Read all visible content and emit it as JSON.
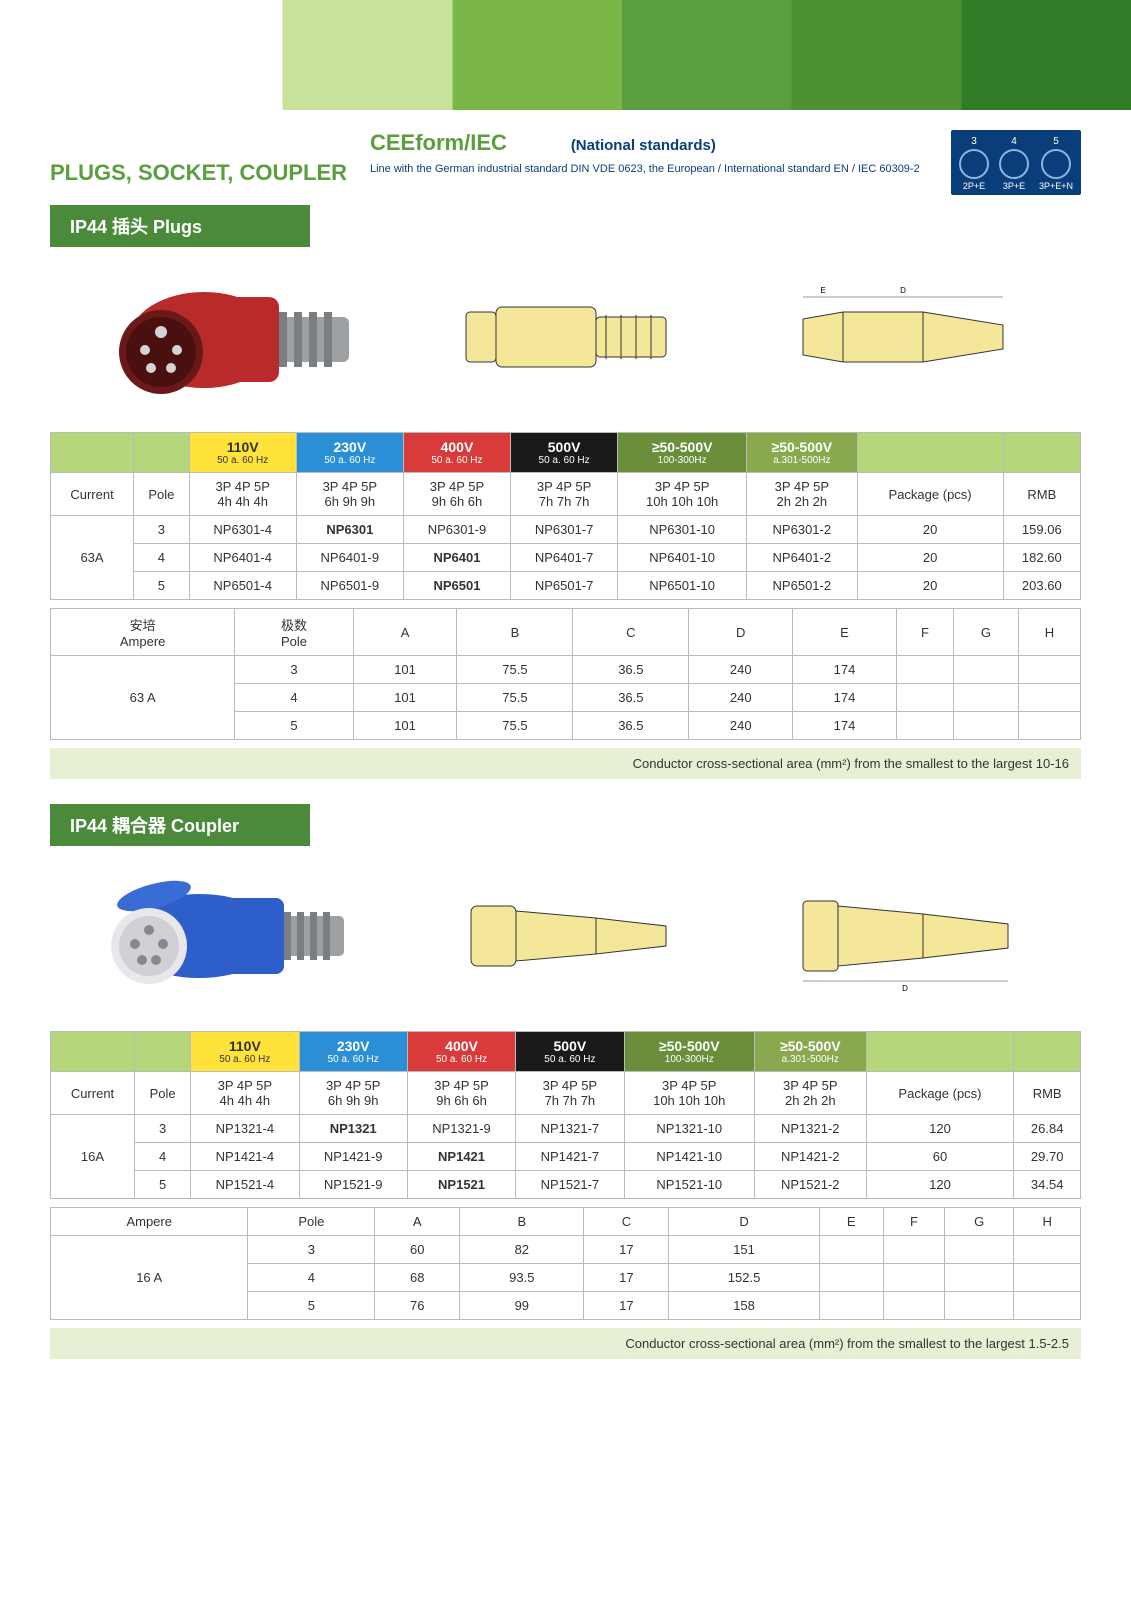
{
  "header": {
    "main_title": "PLUGS, SOCKET, COUPLER",
    "ceeform": "CEEform/IEC",
    "national": "(National standards)",
    "subline": "Line with the German industrial standard DIN VDE 0623, the European / International standard EN / IEC 60309-2",
    "pins": [
      {
        "num": "3",
        "label": "2P+E"
      },
      {
        "num": "4",
        "label": "3P+E"
      },
      {
        "num": "5",
        "label": "3P+E+N"
      }
    ]
  },
  "colors": {
    "green_main": "#5a9e3e",
    "green_dark": "#4a8a3a",
    "navy": "#0a3e7a",
    "hdr_green": "#b5d67a",
    "hdr_yellow": "#ffe23a",
    "hdr_blue": "#2a8fd4",
    "hdr_red": "#d93a3a",
    "hdr_black": "#1a1a1a",
    "hdr_olive": "#6b8e3a",
    "hdr_olive2": "#8aa84d",
    "plug_red": "#b92a2a",
    "plug_grey": "#9ca0a3",
    "coupler_blue": "#2d5ec9",
    "tech_fill": "#f5e79a",
    "tech_stroke": "#333"
  },
  "sections": {
    "plugs": {
      "label": "IP44   插头 Plugs"
    },
    "coupler": {
      "label": "IP44   耦合器 Coupler"
    }
  },
  "voltage_headers": [
    {
      "volt": "110V",
      "hz": "50 a. 60 Hz",
      "cls": "hdr-yellow"
    },
    {
      "volt": "230V",
      "hz": "50 a. 60 Hz",
      "cls": "hdr-blue"
    },
    {
      "volt": "400V",
      "hz": "50 a. 60 Hz",
      "cls": "hdr-red"
    },
    {
      "volt": "500V",
      "hz": "50 a. 60 Hz",
      "cls": "hdr-black"
    },
    {
      "volt": "≥50-500V",
      "hz": "100-300Hz",
      "cls": "hdr-olive"
    },
    {
      "volt": "≥50-500V",
      "hz": "a.301-500Hz",
      "cls": "hdr-olive2"
    }
  ],
  "pole_row": {
    "current": "Current",
    "pole": "Pole",
    "phases": [
      {
        "p": "3P 4P 5P",
        "h": "4h 4h 4h"
      },
      {
        "p": "3P 4P 5P",
        "h": "6h 9h 9h"
      },
      {
        "p": "3P 4P 5P",
        "h": "9h 6h 6h"
      },
      {
        "p": "3P 4P 5P",
        "h": "7h 7h 7h"
      },
      {
        "p": "3P 4P 5P",
        "h": "10h 10h 10h"
      },
      {
        "p": "3P 4P 5P",
        "h": "2h 2h 2h"
      }
    ],
    "pkg": "Package (pcs)",
    "rmb": "RMB"
  },
  "table1": {
    "current": "63A",
    "rows": [
      {
        "pole": "3",
        "cells": [
          "NP6301-4",
          "NP6301",
          "NP6301-9",
          "NP6301-7",
          "NP6301-10",
          "NP6301-2"
        ],
        "bold_idx": 1,
        "pkg": "20",
        "rmb": "159.06"
      },
      {
        "pole": "4",
        "cells": [
          "NP6401-4",
          "NP6401-9",
          "NP6401",
          "NP6401-7",
          "NP6401-10",
          "NP6401-2"
        ],
        "bold_idx": 2,
        "pkg": "20",
        "rmb": "182.60"
      },
      {
        "pole": "5",
        "cells": [
          "NP6501-4",
          "NP6501-9",
          "NP6501",
          "NP6501-7",
          "NP6501-10",
          "NP6501-2"
        ],
        "bold_idx": 2,
        "pkg": "20",
        "rmb": "203.60"
      }
    ]
  },
  "dim_headers": {
    "ampere": "安培\nAmpere",
    "pole": "极数\nPole",
    "cols": [
      "A",
      "B",
      "C",
      "D",
      "E",
      "F",
      "G",
      "H"
    ]
  },
  "table1_dims": {
    "current": "63 A",
    "rows": [
      {
        "pole": "3",
        "vals": [
          "101",
          "75.5",
          "36.5",
          "240",
          "174",
          "",
          "",
          ""
        ]
      },
      {
        "pole": "4",
        "vals": [
          "101",
          "75.5",
          "36.5",
          "240",
          "174",
          "",
          "",
          ""
        ]
      },
      {
        "pole": "5",
        "vals": [
          "101",
          "75.5",
          "36.5",
          "240",
          "174",
          "",
          "",
          ""
        ]
      }
    ]
  },
  "note1": "Conductor cross-sectional area (mm²) from the smallest to the largest 10-16",
  "table2": {
    "current": "16A",
    "rows": [
      {
        "pole": "3",
        "cells": [
          "NP1321-4",
          "NP1321",
          "NP1321-9",
          "NP1321-7",
          "NP1321-10",
          "NP1321-2"
        ],
        "bold_idx": 1,
        "pkg": "120",
        "rmb": "26.84"
      },
      {
        "pole": "4",
        "cells": [
          "NP1421-4",
          "NP1421-9",
          "NP1421",
          "NP1421-7",
          "NP1421-10",
          "NP1421-2"
        ],
        "bold_idx": 2,
        "pkg": "60",
        "rmb": "29.70"
      },
      {
        "pole": "5",
        "cells": [
          "NP1521-4",
          "NP1521-9",
          "NP1521",
          "NP1521-7",
          "NP1521-10",
          "NP1521-2"
        ],
        "bold_idx": 2,
        "pkg": "120",
        "rmb": "34.54"
      }
    ]
  },
  "dim_headers2": {
    "ampere": "Ampere",
    "pole": "Pole",
    "cols": [
      "A",
      "B",
      "C",
      "D",
      "E",
      "F",
      "G",
      "H"
    ]
  },
  "table2_dims": {
    "current": "16 A",
    "rows": [
      {
        "pole": "3",
        "vals": [
          "60",
          "82",
          "17",
          "151",
          "",
          "",
          "",
          ""
        ]
      },
      {
        "pole": "4",
        "vals": [
          "68",
          "93.5",
          "17",
          "152.5",
          "",
          "",
          "",
          ""
        ]
      },
      {
        "pole": "5",
        "vals": [
          "76",
          "99",
          "17",
          "158",
          "",
          "",
          "",
          ""
        ]
      }
    ]
  },
  "note2": "Conductor cross-sectional area (mm²) from the smallest to the largest 1.5-2.5"
}
